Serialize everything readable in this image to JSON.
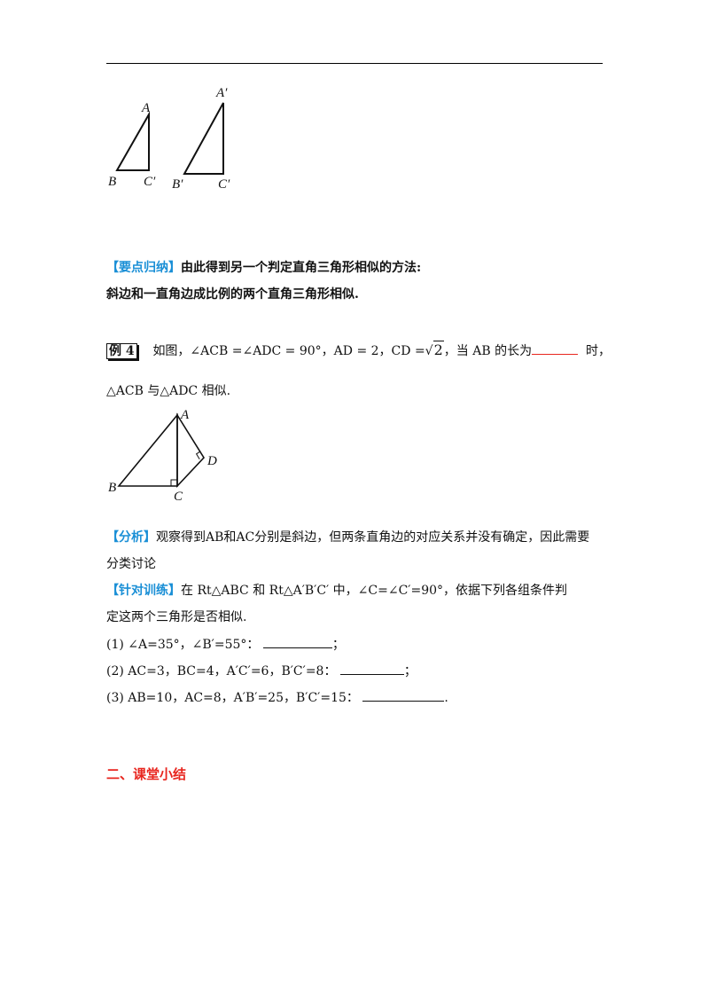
{
  "figure1": {
    "small": {
      "A": "A",
      "B": "B",
      "C": "C′"
    },
    "large": {
      "A": "A′",
      "B": "B′",
      "C": "C′"
    }
  },
  "summary": {
    "tag": "【要点归纳】",
    "line1": "由此得到另一个判定直角三角形相似的方法:",
    "line2": "斜边和一直角边成比例的两个直角三角形相似."
  },
  "example4": {
    "label": "例 4",
    "text_a": "如图，∠ACB =∠ADC = 90°，AD = 2，CD =",
    "sqrt_value": "2",
    "text_b": "，当 AB 的长为",
    "text_c": "时，",
    "line2": "△ACB 与△ADC 相似."
  },
  "figure2": {
    "A": "A",
    "B": "B",
    "C": "C",
    "D": "D"
  },
  "analysis": {
    "tag": "【分析】",
    "line1": "观察得到AB和AC分别是斜边，但两条直角边的对应关系并没有确定，因此需要",
    "line2": "分类讨论"
  },
  "training": {
    "tag": "【针对训练】",
    "line1": "在 Rt△ABC 和 Rt△A′B′C′ 中，∠C=∠C′=90°，依据下列各组条件判",
    "line2": "定这两个三角形是否相似.",
    "items": [
      {
        "text": "(1) ∠A=35°，∠B′=55°：",
        "end": "；"
      },
      {
        "text": "(2) AC=3，BC=4，A′C′=6，B′C′=8：",
        "end": "；"
      },
      {
        "text": "(3) AB=10，AC=8，A′B′=25，B′C′=15：",
        "end": "."
      }
    ]
  },
  "section2": {
    "title": "二、课堂小结"
  }
}
